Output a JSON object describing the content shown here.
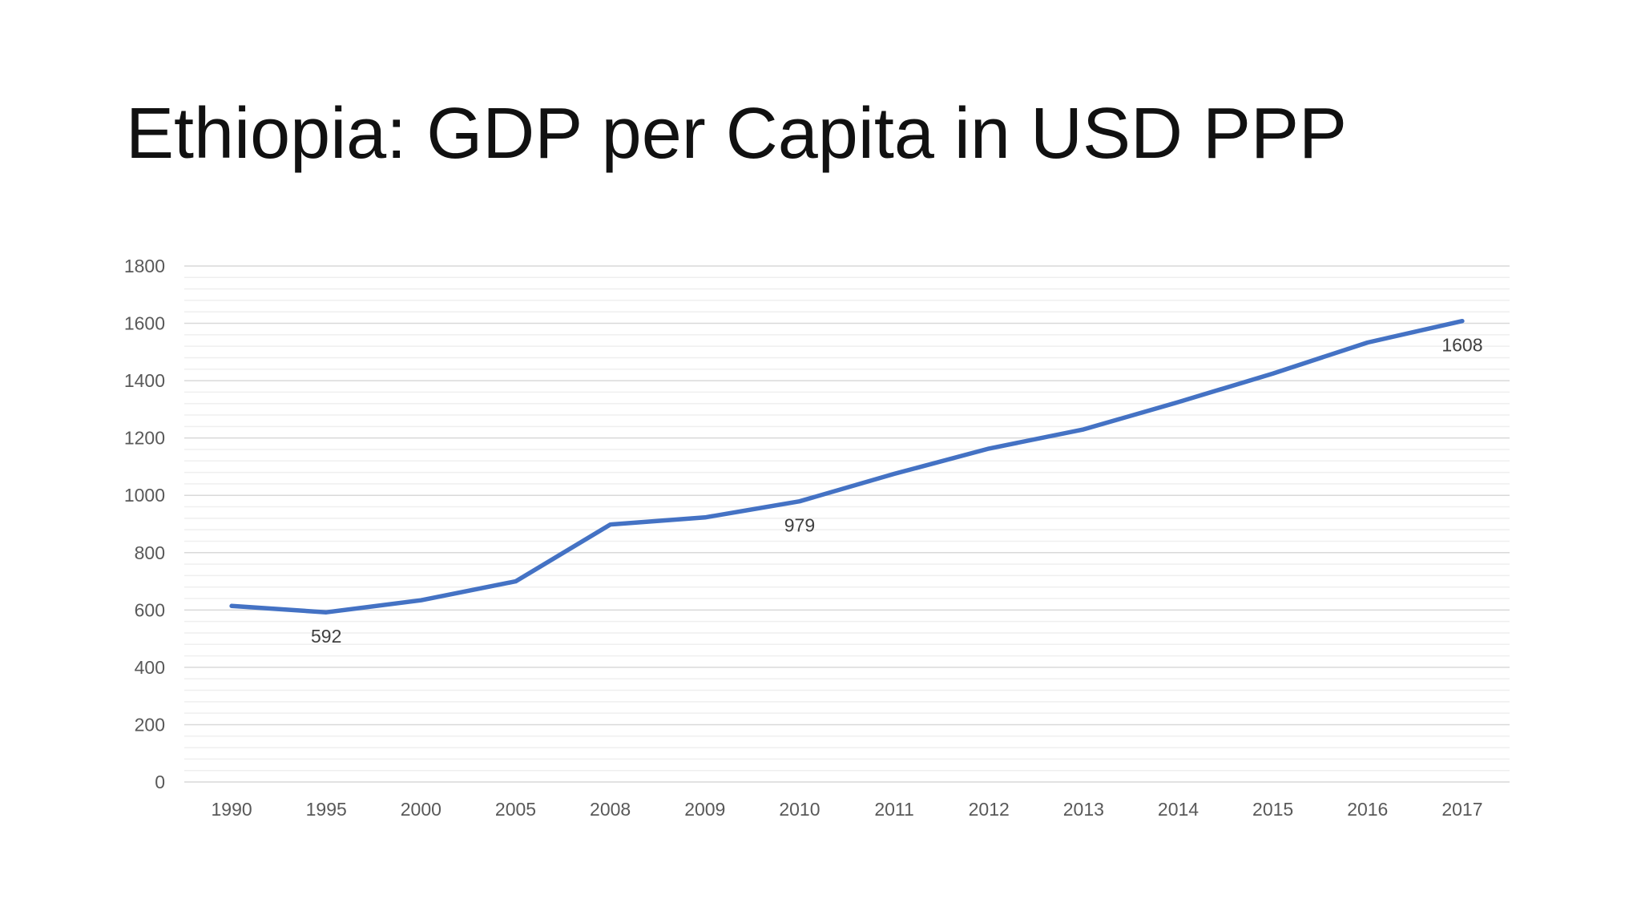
{
  "slide": {
    "title": "Ethiopia: GDP per Capita in USD PPP"
  },
  "chart_data": {
    "type": "line",
    "title": "",
    "xlabel": "",
    "ylabel": "",
    "categories": [
      "1990",
      "1995",
      "2000",
      "2005",
      "2008",
      "2009",
      "2010",
      "2011",
      "2012",
      "2013",
      "2014",
      "2015",
      "2016",
      "2017"
    ],
    "series": [
      {
        "values": [
          614,
          592,
          634,
          700,
          898,
          923,
          979,
          1075,
          1163,
          1230,
          1325,
          1425,
          1533,
          1608
        ],
        "color": "#4472C4"
      }
    ],
    "data_labels": [
      {
        "category": "1995",
        "text": "592"
      },
      {
        "category": "2010",
        "text": "979"
      },
      {
        "category": "2017",
        "text": "1608"
      }
    ],
    "ylim": [
      0,
      1800
    ],
    "y_ticks": [
      "0",
      "200",
      "400",
      "600",
      "800",
      "1000",
      "1200",
      "1400",
      "1600",
      "1800"
    ],
    "y_major_step": 200,
    "y_minor_step": 40,
    "grid": true,
    "legend": "none",
    "colors": {
      "line": "#4472C4",
      "major_grid": "#D9D9D9",
      "minor_grid": "#EFEFEF",
      "axis": "#D9D9D9"
    }
  }
}
